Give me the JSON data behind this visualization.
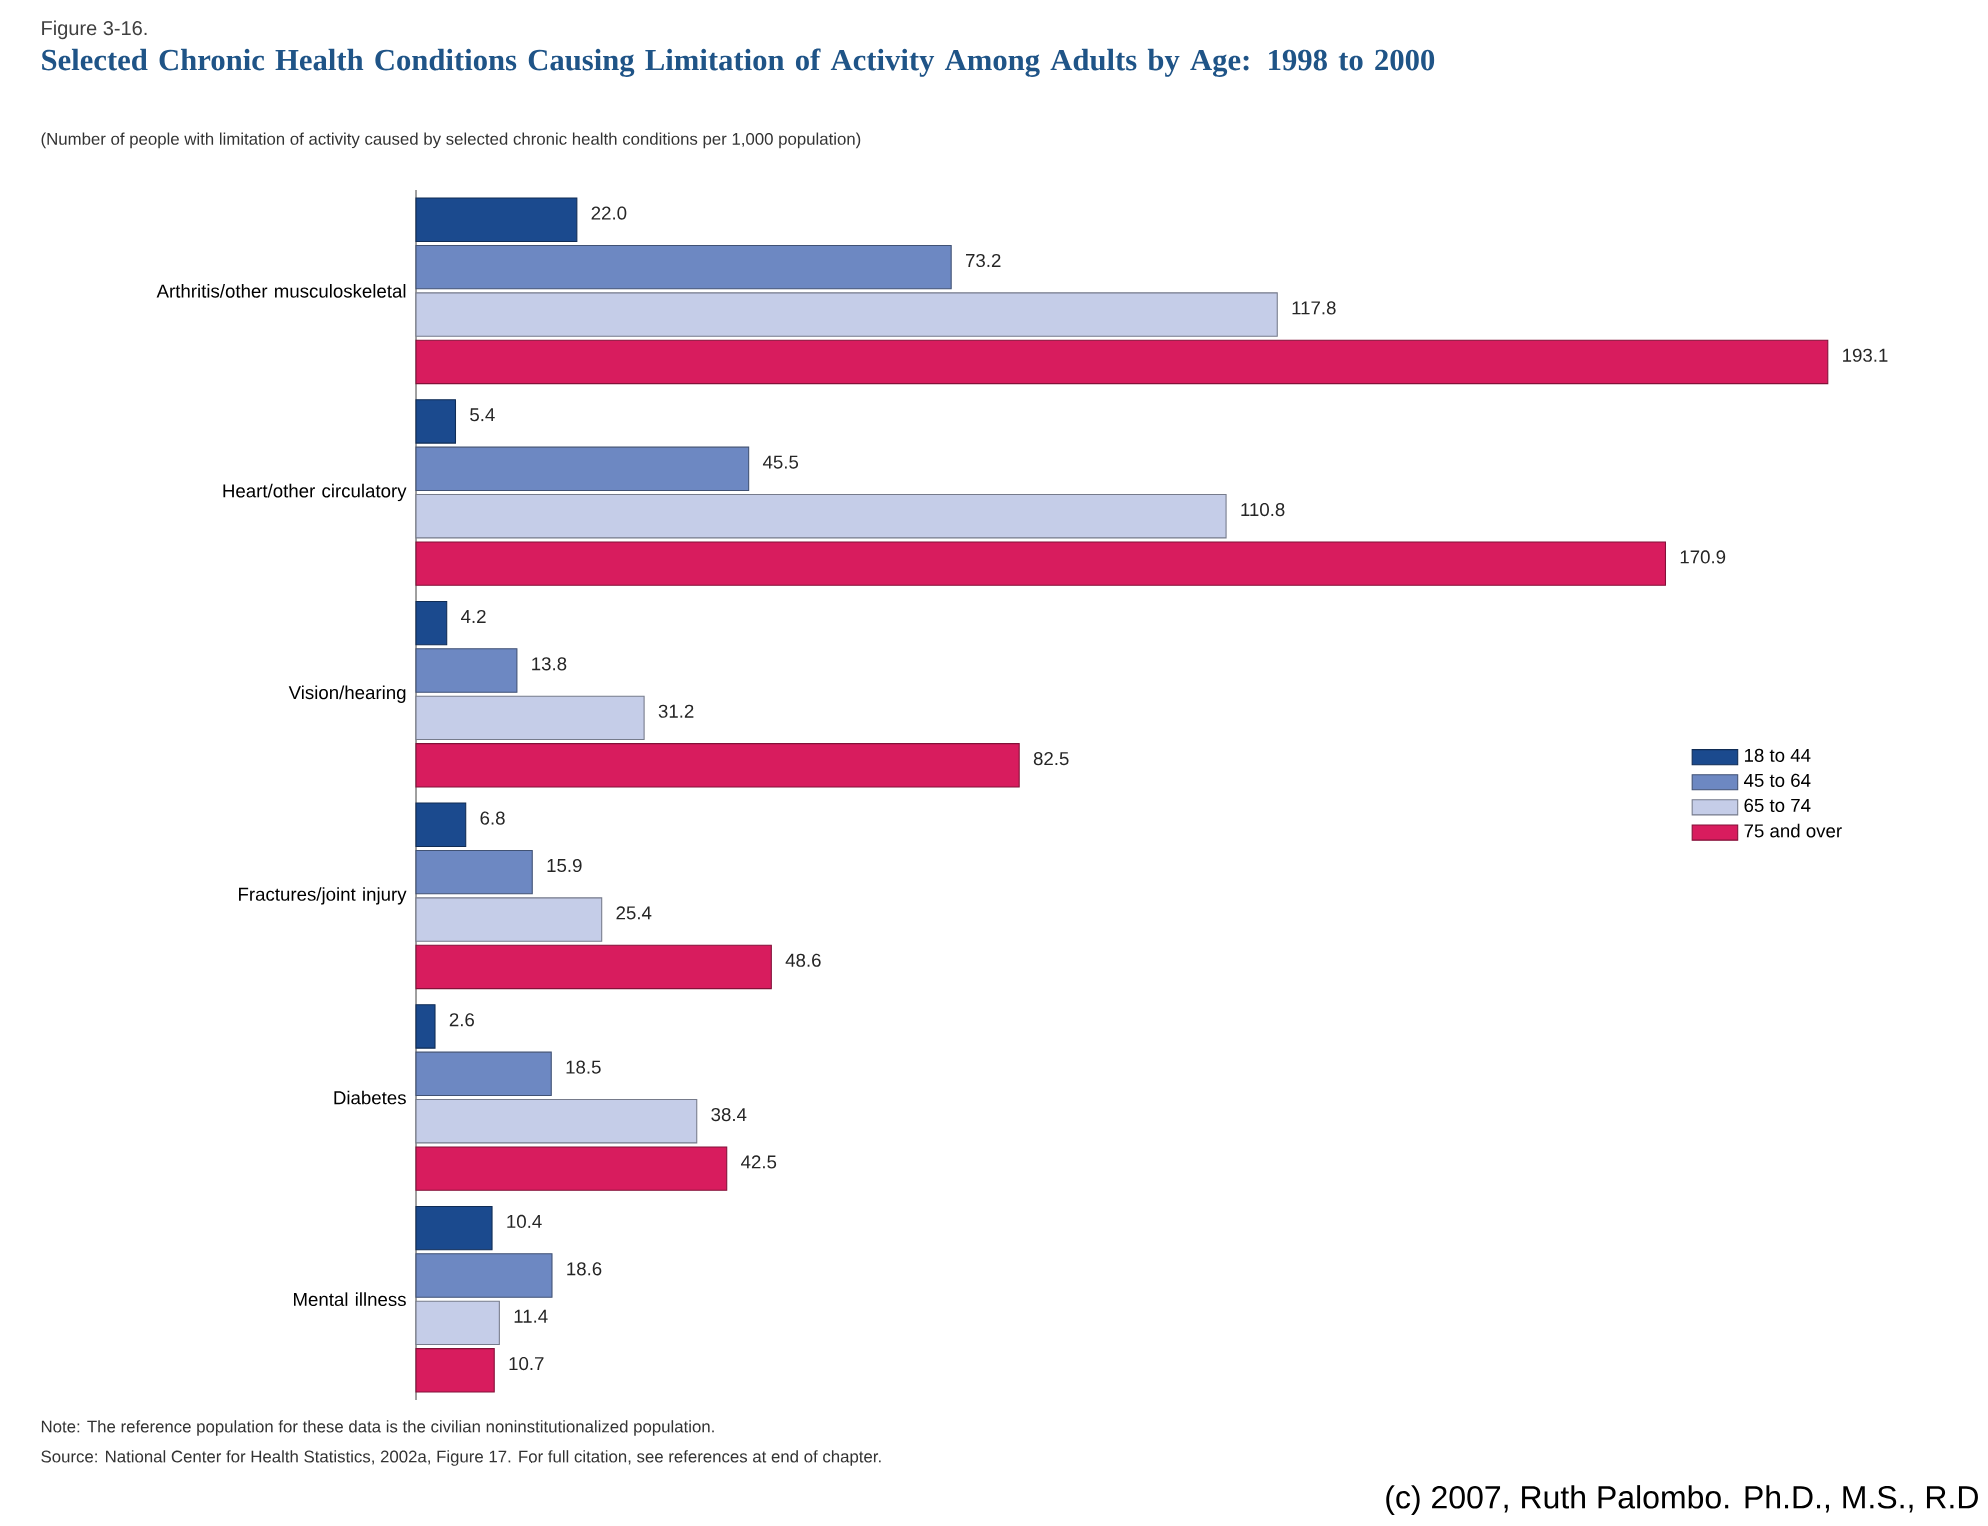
{
  "chart_data": {
    "type": "bar",
    "orientation": "horizontal",
    "title": "Selected Chronic Health Conditions Causing Limitation of Activity Among Adults by Age: 1998 to 2000",
    "subtitle": "(Number of people with limitation of activity caused by selected chronic health conditions per 1,000 population)",
    "categories": [
      "Arthritis/other musculoskeletal",
      "Heart/other circulatory",
      "Vision/hearing",
      "Fractures/joint injury",
      "Diabetes",
      "Mental illness"
    ],
    "series": [
      {
        "name": "18 to 44",
        "color": "#1b4a8e",
        "values": [
          22.0,
          5.4,
          4.2,
          6.8,
          2.6,
          10.4
        ],
        "value_labels": [
          "22.0",
          "5.4",
          "4.2",
          "6.8",
          "2.6",
          "10.4"
        ]
      },
      {
        "name": "45 to 64",
        "color": "#6d88c2",
        "values": [
          73.2,
          45.5,
          13.8,
          15.9,
          18.5,
          18.6
        ],
        "value_labels": [
          "73.2",
          "45.5",
          "13.8",
          "15.9",
          "18.5",
          "18.6"
        ]
      },
      {
        "name": "65 to 74",
        "color": "#c5cde8",
        "values": [
          117.8,
          110.8,
          31.2,
          25.4,
          38.4,
          11.4
        ],
        "value_labels": [
          "117.8",
          "110.8",
          "31.2",
          "25.4",
          "38.4",
          "11.4"
        ]
      },
      {
        "name": "75 and over",
        "color": "#d81c5e",
        "values": [
          193.1,
          170.9,
          82.5,
          48.6,
          42.5,
          10.7
        ],
        "value_labels": [
          "193.1",
          "170.9",
          "82.5",
          "48.6",
          "42.5",
          "10.7"
        ]
      }
    ],
    "legend": "right",
    "annotations": [
      "Figure 3-16.",
      "Note:  The reference population for these data is the civilian noninstitutionalized population.",
      "Source:  National Center for Health Statistics, 2002a, Figure 17.  For full citation, see references at end of chapter.",
      "(c) 2007, Ruth Palombo. Ph.D., M.S., R.D"
    ]
  }
}
